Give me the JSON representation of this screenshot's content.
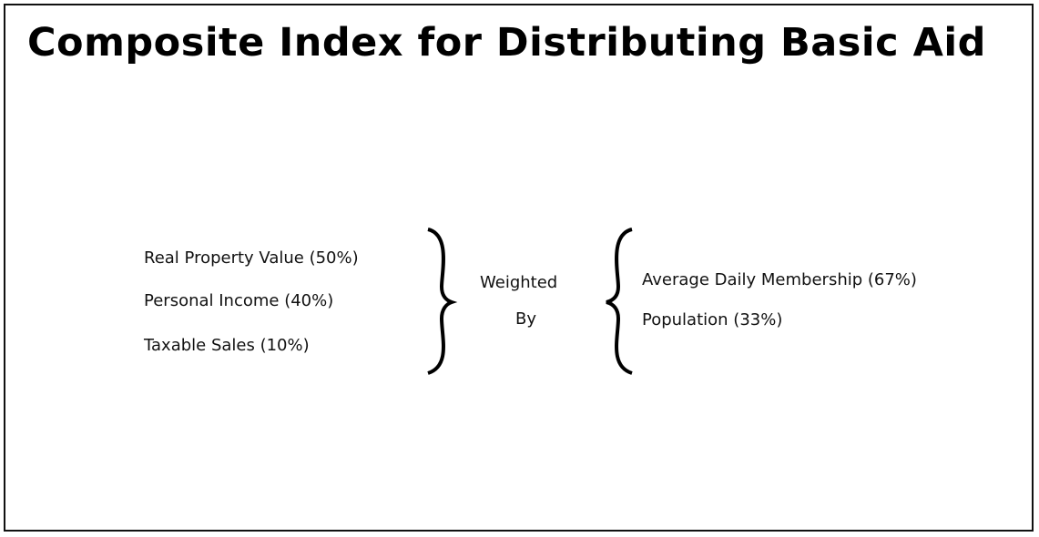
{
  "title": "Composite Index for Distributing Basic Aid",
  "left_items": [
    "Real Property Value (50%)",
    "Personal Income (40%)",
    "Taxable Sales (10%)"
  ],
  "center": [
    "Weighted",
    "By"
  ],
  "right_items": [
    "Average Daily Membership (67%)",
    "Population (33%)"
  ]
}
